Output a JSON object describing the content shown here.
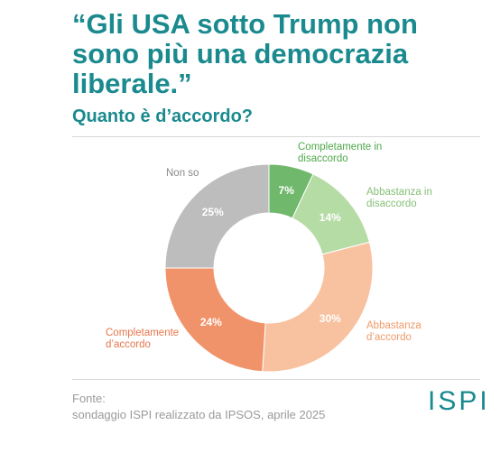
{
  "chart_data": {
    "type": "pie",
    "title": "“Gli USA sotto Trump non sono più una democrazia liberale.”",
    "subtitle": "Quanto è d’accordo?",
    "categories": [
      "Completamente in disaccordo",
      "Abbastanza in disaccordo",
      "Abbastanza d’accordo",
      "Completamente d’accordo",
      "Non so"
    ],
    "values": [
      7,
      14,
      30,
      24,
      25
    ],
    "value_labels": [
      "7%",
      "14%",
      "30%",
      "24%",
      "25%"
    ],
    "colors": [
      "#70b86c",
      "#b6dca6",
      "#f8c1a0",
      "#f1936a",
      "#bdbdbd"
    ],
    "source_label": "Fonte:",
    "source": "sondaggio ISPI realizzato da IPSOS, aprile 2025",
    "logo": "ISPI"
  }
}
